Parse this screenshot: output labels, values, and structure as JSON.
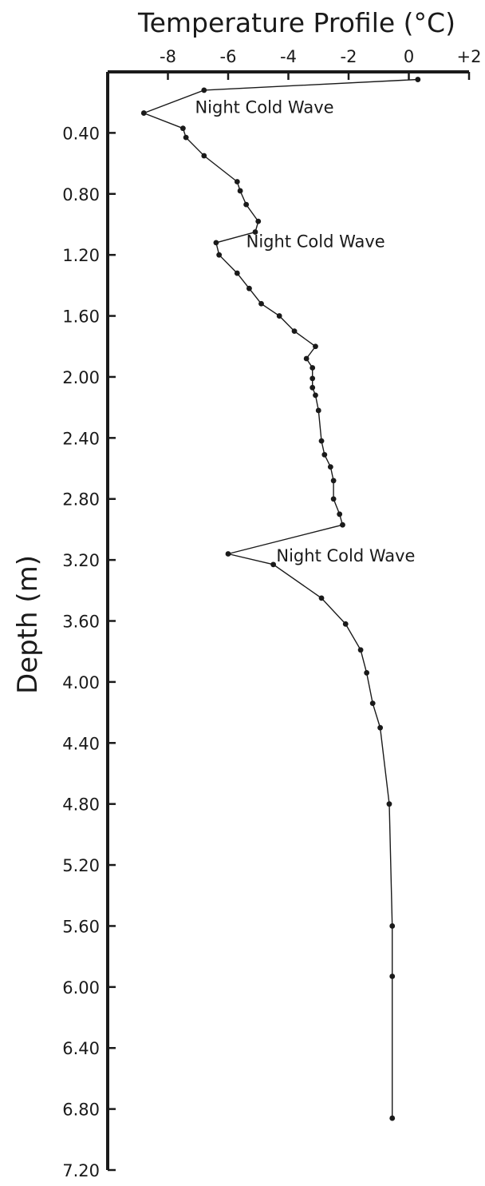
{
  "chart_data": {
    "type": "line",
    "title": "Temperature Profile (°C)",
    "xlabel": "",
    "ylabel": "Depth (m)",
    "xlim": [
      -10,
      2
    ],
    "ylim": [
      0,
      7.2
    ],
    "x_axis_position": "top",
    "y_axis_inverted": true,
    "grid": false,
    "x_ticks": [
      -8,
      -6,
      -4,
      -2,
      0,
      2
    ],
    "x_tick_labels": [
      "-8",
      "-6",
      "-4",
      "-2",
      "0",
      "+2"
    ],
    "y_ticks": [
      0.4,
      0.8,
      1.2,
      1.6,
      2.0,
      2.4,
      2.8,
      3.2,
      3.6,
      4.0,
      4.4,
      4.8,
      5.2,
      5.6,
      6.0,
      6.4,
      6.8,
      7.2
    ],
    "y_tick_labels": [
      "0.40",
      "0.80",
      "1.20",
      "1.60",
      "2.00",
      "2.40",
      "2.80",
      "3.20",
      "3.60",
      "4.00",
      "4.40",
      "4.80",
      "5.20",
      "5.60",
      "6.00",
      "6.40",
      "6.80",
      "7.20"
    ],
    "series": [
      {
        "x": [
          0.3,
          -6.8,
          -8.8,
          -7.5,
          -7.4,
          -6.8,
          -5.7,
          -5.6,
          -5.4,
          -5.0,
          -5.1,
          -6.4,
          -6.3,
          -5.7,
          -5.3,
          -4.9,
          -4.3,
          -3.8,
          -3.1,
          -3.4,
          -3.2,
          -3.2,
          -3.2,
          -3.1,
          -3.0,
          -2.9,
          -2.8,
          -2.6,
          -2.5,
          -2.5,
          -2.3,
          -2.2,
          -6.0,
          -4.5,
          -2.9,
          -2.1,
          -1.6,
          -1.4,
          -1.2,
          -0.95,
          -0.65,
          -0.55,
          -0.55,
          -0.55
        ],
        "y": [
          0.05,
          0.12,
          0.27,
          0.37,
          0.43,
          0.55,
          0.72,
          0.78,
          0.87,
          0.98,
          1.05,
          1.12,
          1.2,
          1.32,
          1.42,
          1.52,
          1.6,
          1.7,
          1.8,
          1.88,
          1.94,
          2.01,
          2.07,
          2.12,
          2.22,
          2.42,
          2.51,
          2.59,
          2.68,
          2.8,
          2.9,
          2.97,
          3.16,
          3.23,
          3.45,
          3.62,
          3.79,
          3.94,
          4.14,
          4.3,
          4.8,
          5.6,
          5.93,
          6.86
        ]
      }
    ],
    "annotations": [
      {
        "text": "Night Cold Wave",
        "x": -7.1,
        "y": 0.27
      },
      {
        "text": "Night Cold Wave",
        "x": -5.4,
        "y": 1.15
      },
      {
        "text": "Night Cold Wave",
        "x": -4.4,
        "y": 3.21
      }
    ]
  }
}
